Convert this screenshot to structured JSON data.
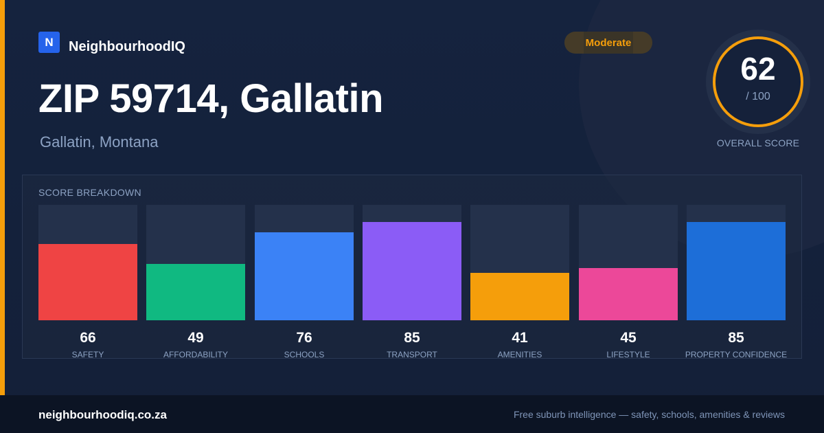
{
  "brand": {
    "logo_letter": "N",
    "name": "NeighbourhoodIQ"
  },
  "badge": {
    "label": "Moderate",
    "color": "#f59e0b"
  },
  "title": "ZIP 59714, Gallatin",
  "subtitle": "Gallatin, Montana",
  "overall": {
    "score": "62",
    "max": "/ 100",
    "label": "OVERALL SCORE"
  },
  "breakdown": {
    "title": "SCORE BREAKDOWN",
    "max_score": 100,
    "items": [
      {
        "score": 66,
        "label": "SAFETY",
        "color": "#ef4444"
      },
      {
        "score": 49,
        "label": "AFFORDABILITY",
        "color": "#10b981"
      },
      {
        "score": 76,
        "label": "SCHOOLS",
        "color": "#3b82f6"
      },
      {
        "score": 85,
        "label": "TRANSPORT",
        "color": "#8b5cf6"
      },
      {
        "score": 41,
        "label": "AMENITIES",
        "color": "#f59e0b"
      },
      {
        "score": 45,
        "label": "LIFESTYLE",
        "color": "#ec4899"
      },
      {
        "score": 85,
        "label": "PROPERTY CONFIDENCE",
        "color": "#1d6ed8"
      }
    ]
  },
  "footer": {
    "site": "neighbourhoodiq.co.za",
    "tagline": "Free suburb intelligence — safety, schools, amenities & reviews"
  }
}
